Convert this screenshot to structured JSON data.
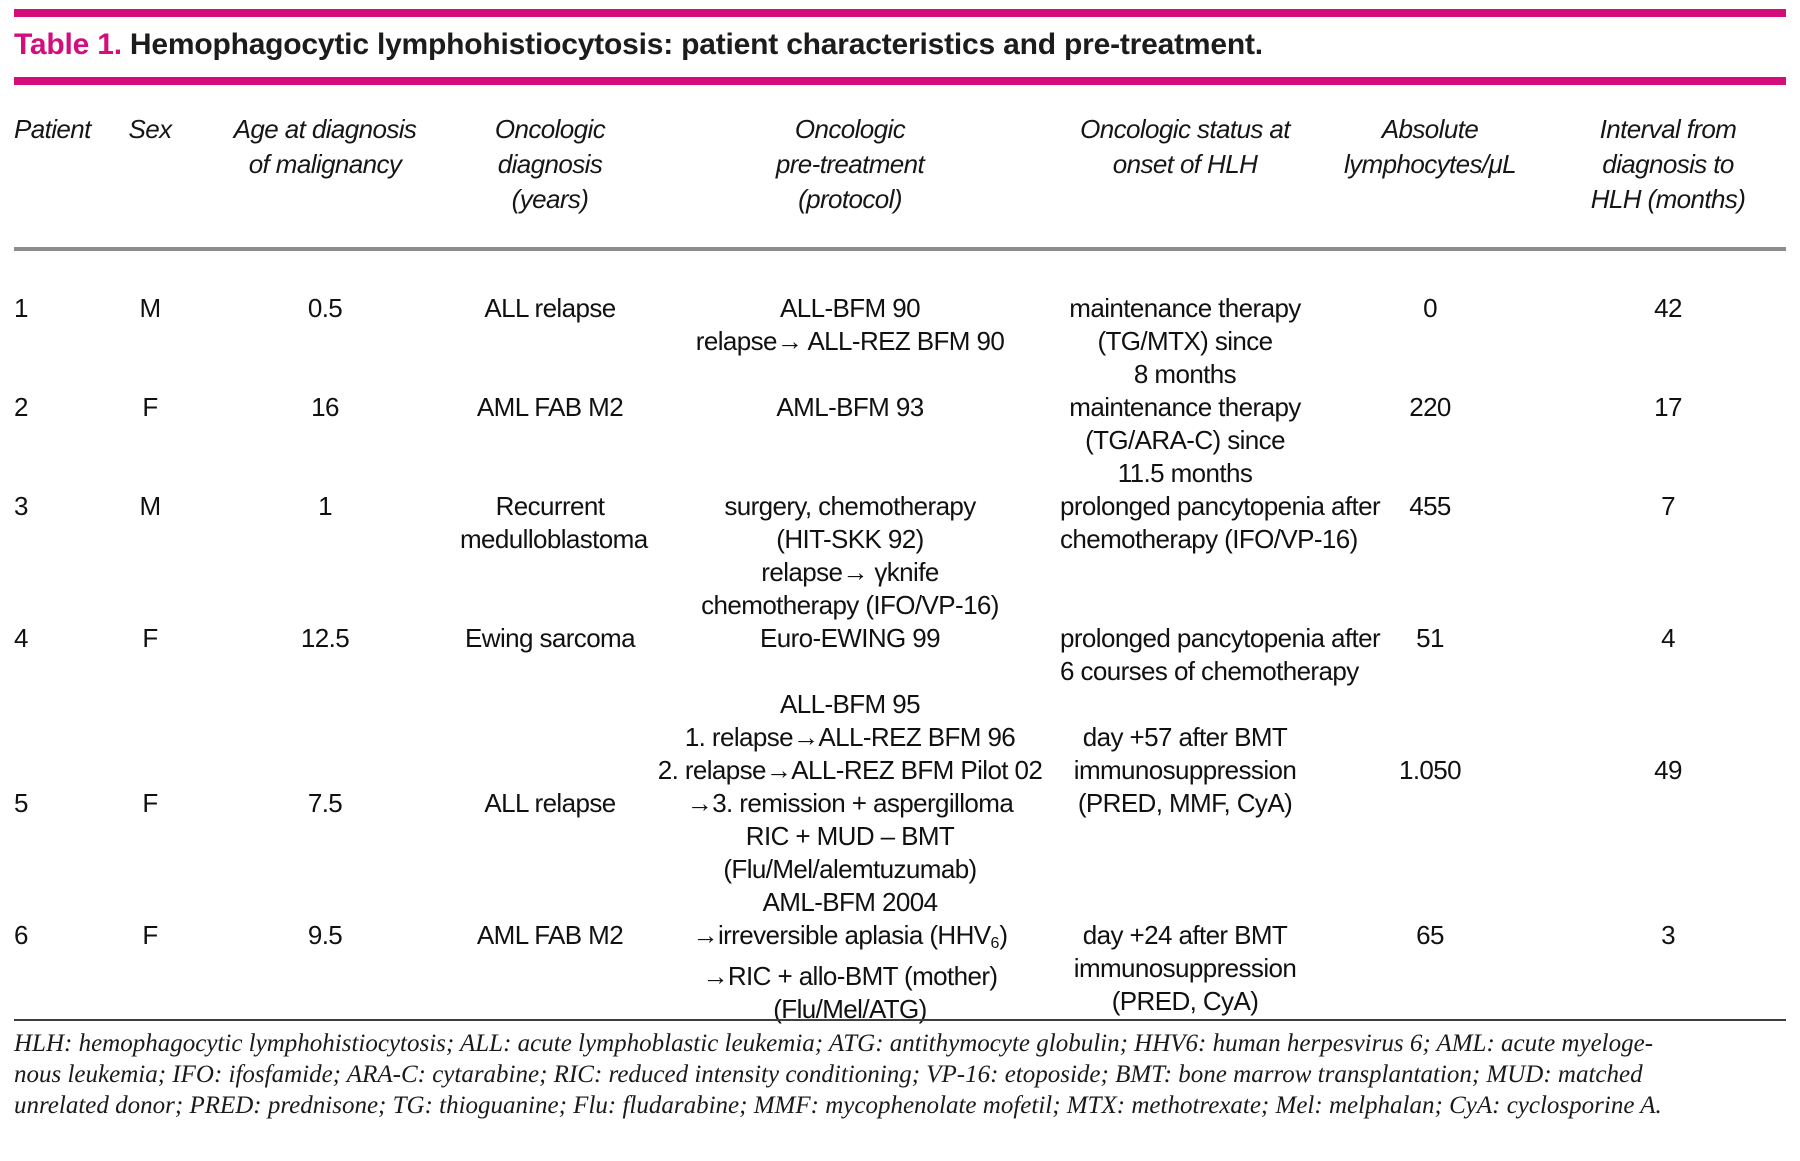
{
  "colors": {
    "accent": "#d40d7c",
    "header_rule": "#8d8d8d",
    "text": "#111111"
  },
  "title": {
    "label": "Table 1.",
    "text": "Hemophagocytic lymphohistiocytosis: patient characteristics and pre-treatment."
  },
  "columns": [
    {
      "lines": [
        "Patient"
      ]
    },
    {
      "lines": [
        "Sex"
      ]
    },
    {
      "lines": [
        "Age at diagnosis",
        "of malignancy"
      ]
    },
    {
      "lines": [
        "Oncologic diagnosis",
        "(years)"
      ]
    },
    {
      "lines": [
        "Oncologic",
        "pre-treatment",
        "(protocol)"
      ]
    },
    {
      "lines": [
        "Oncologic status at",
        "onset of HLH"
      ]
    },
    {
      "lines": [
        "Absolute",
        "lymphocytes/μL"
      ]
    },
    {
      "lines": [
        "Interval from",
        "diagnosis to",
        "HLH (months)"
      ]
    }
  ],
  "rows": [
    {
      "patient": "1",
      "sex": "M",
      "age": "0.5",
      "diagnosis": [
        "ALL relapse"
      ],
      "pre_treatment": [
        "ALL-BFM 90",
        "relapse→ ALL-REZ BFM 90"
      ],
      "status": [
        "maintenance therapy",
        "(TG/MTX) since",
        "8 months"
      ],
      "lymphocytes": "0",
      "interval": "42"
    },
    {
      "patient": "2",
      "sex": "F",
      "age": "16",
      "diagnosis": [
        "AML FAB M2"
      ],
      "pre_treatment": [
        "AML-BFM 93"
      ],
      "status": [
        "maintenance therapy",
        "(TG/ARA-C) since",
        "11.5 months"
      ],
      "lymphocytes": "220",
      "interval": "17"
    },
    {
      "patient": "3",
      "sex": "M",
      "age": "1",
      "diagnosis": [
        "Recurrent",
        "medulloblastoma"
      ],
      "pre_treatment": [
        "surgery, chemotherapy",
        "(HIT-SKK 92)",
        "relapse→ γknife",
        "chemotherapy (IFO/VP-16)"
      ],
      "status": [
        "prolonged pancytopenia after",
        "chemotherapy (IFO/VP-16)"
      ],
      "lymphocytes": "455",
      "interval": "7"
    },
    {
      "patient": "4",
      "sex": "F",
      "age": "12.5",
      "diagnosis": [
        "Ewing sarcoma"
      ],
      "pre_treatment": [
        "Euro-EWING 99"
      ],
      "status": [
        "prolonged pancytopenia after",
        "6 courses of chemotherapy"
      ],
      "lymphocytes": "51",
      "interval": "4"
    },
    {
      "patient": "5",
      "sex": "F",
      "age": "7.5",
      "diagnosis": [
        "ALL relapse"
      ],
      "pre_treatment": [
        "ALL-BFM 95",
        "1. relapse→ALL-REZ BFM 96",
        "2. relapse→ALL-REZ BFM Pilot 02",
        "→3. remission + aspergilloma",
        "RIC + MUD – BMT",
        "(Flu/Mel/alemtuzumab)"
      ],
      "status": [
        "day +57 after BMT",
        "immunosuppression",
        "(PRED, MMF, CyA)"
      ],
      "lymphocytes": "1.050",
      "interval": "49"
    },
    {
      "patient": "6",
      "sex": "F",
      "age": "9.5",
      "diagnosis": [
        "AML FAB M2"
      ],
      "pre_treatment_l1": "AML-BFM 2004",
      "pre_treatment_l2": {
        "prefix": "→irreversible aplasia (HHV",
        "sub": "6",
        "suffix": ")"
      },
      "pre_treatment_l3": "→RIC + allo-BMT (mother)",
      "pre_treatment_l4": "(Flu/Mel/ATG)",
      "status": [
        "day +24 after BMT",
        "immunosuppression",
        "(PRED, CyA)"
      ],
      "lymphocytes": "65",
      "interval": "3"
    }
  ],
  "footnote": {
    "lines": [
      "HLH: hemophagocytic lymphohistiocytosis; ALL: acute lymphoblastic leukemia; ATG: antithymocyte globulin; HHV6: human herpesvirus 6; AML: acute myeloge-",
      "nous leukemia; IFO: ifosfamide; ARA-C: cytarabine; RIC: reduced intensity conditioning; VP-16: etoposide; BMT: bone marrow transplantation; MUD: matched",
      "unrelated donor; PRED: prednisone; TG: thioguanine; Flu: fludarabine; MMF: mycophenolate mofetil; MTX: methotrexate; Mel: melphalan; CyA: cyclosporine A."
    ]
  }
}
